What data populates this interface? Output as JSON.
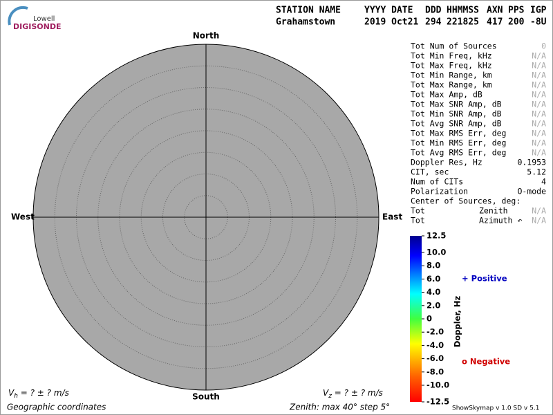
{
  "logo": {
    "line1": "Lowell",
    "line2": "DIGISONDE"
  },
  "header": {
    "labels": [
      "STATION NAME",
      "YYYY DATE",
      "DDD",
      "HHMMSS",
      "AXN",
      "PPS",
      "IGP"
    ],
    "values": [
      "Grahamstown",
      "2019 Oct21",
      "294",
      "221825",
      "417",
      "200",
      "-8U"
    ]
  },
  "directions": {
    "north": "North",
    "south": "South",
    "west": "West",
    "east": "East"
  },
  "stats": [
    {
      "label": "Tot Num of Sources",
      "value": "0"
    },
    {
      "label": "Tot Min Freq, kHz",
      "value": "N/A"
    },
    {
      "label": "Tot Max Freq, kHz",
      "value": "N/A"
    },
    {
      "label": "Tot Min Range, km",
      "value": "N/A"
    },
    {
      "label": "Tot Max Range, km",
      "value": "N/A"
    },
    {
      "label": "Tot Max Amp, dB",
      "value": "N/A"
    },
    {
      "label": "Tot Max SNR Amp, dB",
      "value": "N/A"
    },
    {
      "label": "Tot Min SNR Amp, dB",
      "value": "N/A"
    },
    {
      "label": "Tot Avg SNR Amp, dB",
      "value": "N/A"
    },
    {
      "label": "Tot Max RMS Err, deg",
      "value": "N/A"
    },
    {
      "label": "Tot Min RMS Err, deg",
      "value": "N/A"
    },
    {
      "label": "Tot Avg RMS Err, deg",
      "value": "N/A"
    },
    {
      "label": "Doppler Res, Hz",
      "value": "0.1953"
    },
    {
      "label": "CIT, sec",
      "value": "5.12"
    },
    {
      "label": "Num of CITs",
      "value": "4"
    },
    {
      "label": "Polarization",
      "value": "O-mode"
    }
  ],
  "center": {
    "title": "Center of Sources, deg:",
    "rows": [
      {
        "label": "Tot",
        "name": "Zenith",
        "value": "N/A"
      },
      {
        "label": "Tot",
        "name": "Azimuth ↶",
        "value": "N/A"
      }
    ]
  },
  "colorbar": {
    "label": "Doppler, Hz",
    "ylim": [
      -12.5,
      12.5
    ],
    "ticks": [
      12.5,
      {
        "value": 10,
        "label": "10.0"
      },
      {
        "value": 8,
        "label": "8.0"
      },
      {
        "value": 6,
        "label": "6.0"
      },
      {
        "value": 4,
        "label": "4.0"
      },
      {
        "value": 2,
        "label": "2.0"
      },
      0,
      {
        "value": -2,
        "label": "-2.0"
      },
      {
        "value": -4,
        "label": "-4.0"
      },
      {
        "value": -6,
        "label": "-6.0"
      },
      {
        "value": -8,
        "label": "-8.0"
      },
      {
        "value": -10,
        "label": "-10.0"
      },
      -12.5
    ]
  },
  "legend": {
    "positive": "+ Positive",
    "negative": "o Negative"
  },
  "footer": {
    "vh": {
      "v": "V",
      "sub": "h",
      "rest": " =  ? ±  ? m/s"
    },
    "vz": {
      "v": "V",
      "sub": "z",
      "rest": " =  ? ±  ? m/s"
    },
    "coords": "Geographic coordinates",
    "zenith": "Zenith: max 40°  step 5°",
    "version": "ShowSkymap v 1.0  SD v 5.1"
  }
}
